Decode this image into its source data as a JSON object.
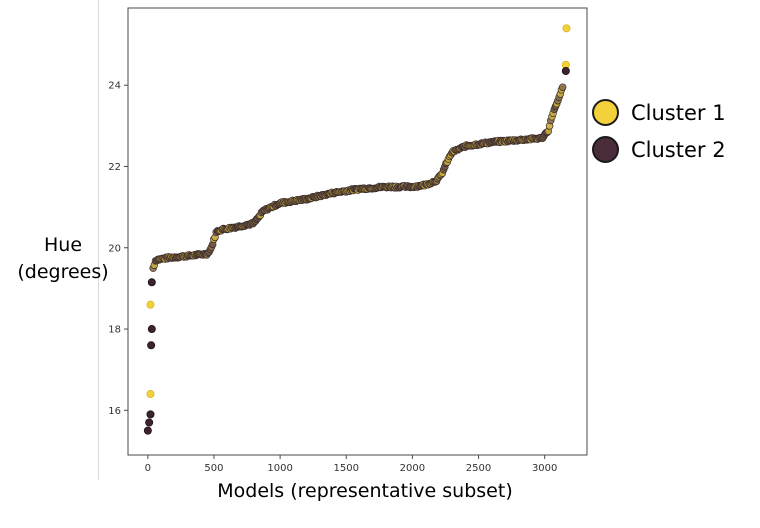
{
  "chart_data": {
    "type": "scatter",
    "title": "",
    "xlabel": "Models (representative subset)",
    "ylabel": [
      "Hue",
      "(degrees)"
    ],
    "xlim": [
      -150,
      3320
    ],
    "ylim": [
      14.9,
      25.9
    ],
    "xticks": [
      0,
      500,
      1000,
      1500,
      2000,
      2500,
      3000
    ],
    "yticks": [
      16,
      18,
      20,
      22,
      24
    ],
    "grid": false,
    "legend_position": "right, outside plot",
    "colors": {
      "cluster1": "#f2d13a",
      "cluster2": "#3d2230",
      "mixed_fill": "#9a8550",
      "axes": "#4a4a4a"
    },
    "curve": {
      "description_points_x": [
        0,
        15,
        30,
        60,
        150,
        300,
        450,
        480,
        500,
        520,
        560,
        650,
        800,
        850,
        870,
        900,
        1000,
        1200,
        1400,
        1600,
        1800,
        2000,
        2100,
        2180,
        2220,
        2260,
        2300,
        2400,
        2600,
        2800,
        2980,
        3030,
        3060,
        3100,
        3130,
        3160
      ],
      "description_points_y": [
        15.5,
        15.8,
        19.4,
        19.7,
        19.75,
        19.8,
        19.85,
        20.0,
        20.2,
        20.4,
        20.45,
        20.5,
        20.6,
        20.8,
        20.9,
        20.95,
        21.1,
        21.2,
        21.35,
        21.45,
        21.5,
        21.5,
        21.55,
        21.65,
        21.8,
        22.1,
        22.35,
        22.5,
        22.6,
        22.65,
        22.7,
        22.9,
        23.3,
        23.6,
        23.9,
        24.1
      ]
    },
    "series": [
      {
        "name": "Cluster 1",
        "color": "#f2d13a",
        "outliers": [
          {
            "x": 20,
            "y": 16.4
          },
          {
            "x": 20,
            "y": 18.6
          },
          {
            "x": 3165,
            "y": 25.4
          },
          {
            "x": 3160,
            "y": 24.5
          }
        ]
      },
      {
        "name": "Cluster 2",
        "color": "#3d2230",
        "outliers": [
          {
            "x": 0,
            "y": 15.5
          },
          {
            "x": 10,
            "y": 15.7
          },
          {
            "x": 20,
            "y": 15.9
          },
          {
            "x": 25,
            "y": 17.6
          },
          {
            "x": 30,
            "y": 18.0
          },
          {
            "x": 30,
            "y": 19.15
          },
          {
            "x": 3160,
            "y": 24.35
          }
        ]
      }
    ]
  }
}
